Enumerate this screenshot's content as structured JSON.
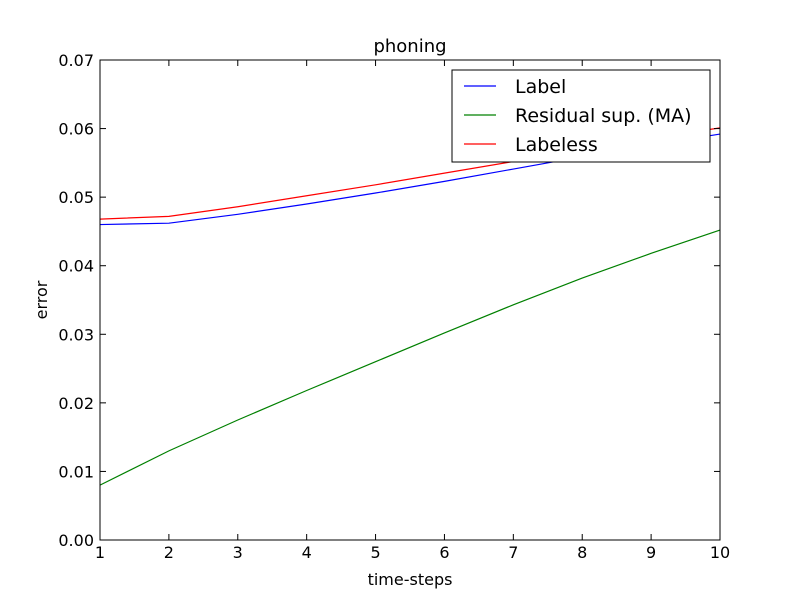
{
  "chart_data": {
    "type": "line",
    "title": "phoning",
    "xlabel": "time-steps",
    "ylabel": "error",
    "xlim": [
      1,
      10
    ],
    "ylim": [
      0,
      0.07
    ],
    "xticks": [
      "1",
      "2",
      "3",
      "4",
      "5",
      "6",
      "7",
      "8",
      "9",
      "10"
    ],
    "yticks": [
      "0.00",
      "0.01",
      "0.02",
      "0.03",
      "0.04",
      "0.05",
      "0.06",
      "0.07"
    ],
    "grid": false,
    "legend_position": "top-right",
    "x": [
      1,
      2,
      3,
      4,
      5,
      6,
      7,
      8,
      9,
      10
    ],
    "series": [
      {
        "name": "Label",
        "color": "#0000ff",
        "values": [
          0.046,
          0.0462,
          0.0475,
          0.049,
          0.0506,
          0.0523,
          0.0541,
          0.0559,
          0.0576,
          0.0592
        ]
      },
      {
        "name": "Residual sup. (MA)",
        "color": "#008000",
        "values": [
          0.008,
          0.013,
          0.0175,
          0.0218,
          0.026,
          0.0302,
          0.0343,
          0.0382,
          0.0418,
          0.0452
        ]
      },
      {
        "name": "Labeless",
        "color": "#ff0000",
        "values": [
          0.0468,
          0.0472,
          0.0486,
          0.0502,
          0.0518,
          0.0535,
          0.0552,
          0.0569,
          0.0586,
          0.0601
        ]
      }
    ]
  }
}
